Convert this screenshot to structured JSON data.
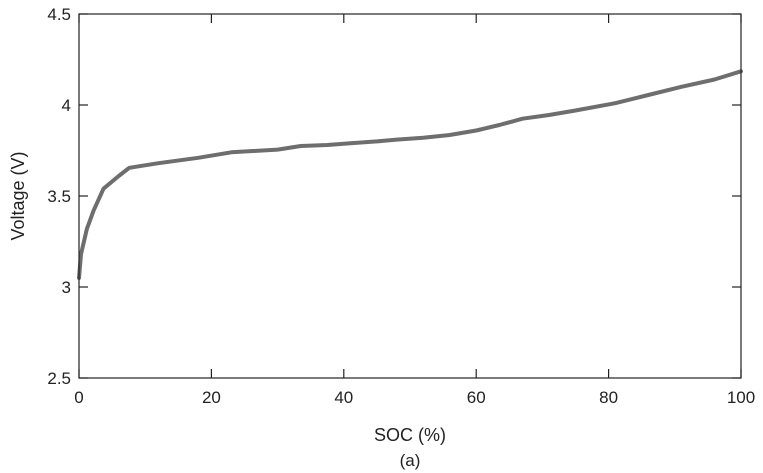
{
  "chart_data": {
    "type": "line",
    "xlabel": "SOC (%)",
    "ylabel": "Voltage (V)",
    "caption": "(a)",
    "xlim": [
      0,
      100
    ],
    "ylim": [
      2.5,
      4.5
    ],
    "xticks": [
      0,
      20,
      40,
      60,
      80,
      100
    ],
    "yticks": [
      2.5,
      3,
      3.5,
      4,
      4.5
    ],
    "xtick_labels": [
      "0",
      "20",
      "40",
      "60",
      "80",
      "100"
    ],
    "ytick_labels": [
      "2.5",
      "3",
      "3.5",
      "4",
      "4.5"
    ],
    "grid": false,
    "line_color": "#6e6e6e",
    "series": [
      {
        "x": [
          0,
          0.3,
          1.2,
          2.2,
          3.7,
          6,
          7.6,
          12,
          18,
          23,
          30,
          33.5,
          37.5,
          41,
          45,
          48,
          52,
          56,
          60,
          63.5,
          67,
          71,
          75,
          81,
          86,
          91,
          96,
          100
        ],
        "y": [
          3.05,
          3.18,
          3.32,
          3.42,
          3.54,
          3.61,
          3.655,
          3.68,
          3.71,
          3.74,
          3.755,
          3.775,
          3.78,
          3.79,
          3.8,
          3.81,
          3.82,
          3.835,
          3.86,
          3.89,
          3.925,
          3.945,
          3.97,
          4.01,
          4.055,
          4.1,
          4.14,
          4.185
        ]
      }
    ]
  }
}
